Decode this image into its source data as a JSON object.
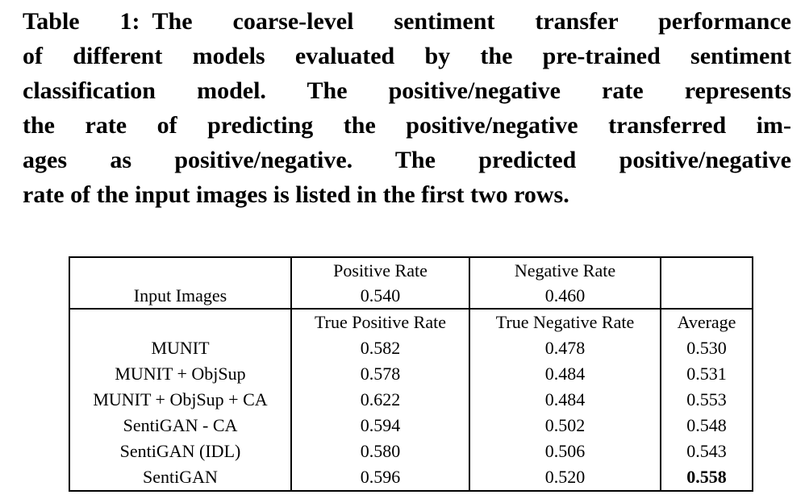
{
  "caption": {
    "lines": [
      "Table 1: The coarse-level sentiment transfer performance",
      "of different models evaluated by the pre-trained sentiment",
      "classification model. The positive/negative rate represents",
      "the rate of predicting the positive/negative transferred im-",
      "ages as positive/negative. The predicted positive/negative",
      "rate of the input images is listed in the first two rows."
    ]
  },
  "table": {
    "input_block": {
      "positive_rate_label": "Positive Rate",
      "negative_rate_label": "Negative Rate",
      "row_label": "Input Images",
      "positive_rate_value": "0.540",
      "negative_rate_value": "0.460"
    },
    "model_block": {
      "tpr_label": "True Positive Rate",
      "tnr_label": "True Negative Rate",
      "avg_label": "Average",
      "rows": [
        {
          "model": "MUNIT",
          "tpr": "0.582",
          "tnr": "0.478",
          "avg": "0.530",
          "avg_bold": false
        },
        {
          "model": "MUNIT + ObjSup",
          "tpr": "0.578",
          "tnr": "0.484",
          "avg": "0.531",
          "avg_bold": false
        },
        {
          "model": "MUNIT + ObjSup + CA",
          "tpr": "0.622",
          "tnr": "0.484",
          "avg": "0.553",
          "avg_bold": false
        },
        {
          "model": "SentiGAN - CA",
          "tpr": "0.594",
          "tnr": "0.502",
          "avg": "0.548",
          "avg_bold": false
        },
        {
          "model": "SentiGAN (IDL)",
          "tpr": "0.580",
          "tnr": "0.506",
          "avg": "0.543",
          "avg_bold": false
        },
        {
          "model": "SentiGAN",
          "tpr": "0.596",
          "tnr": "0.520",
          "avg": "0.558",
          "avg_bold": true
        }
      ]
    }
  },
  "colors": {
    "background": "#ffffff",
    "text": "#000000",
    "border": "#000000"
  }
}
